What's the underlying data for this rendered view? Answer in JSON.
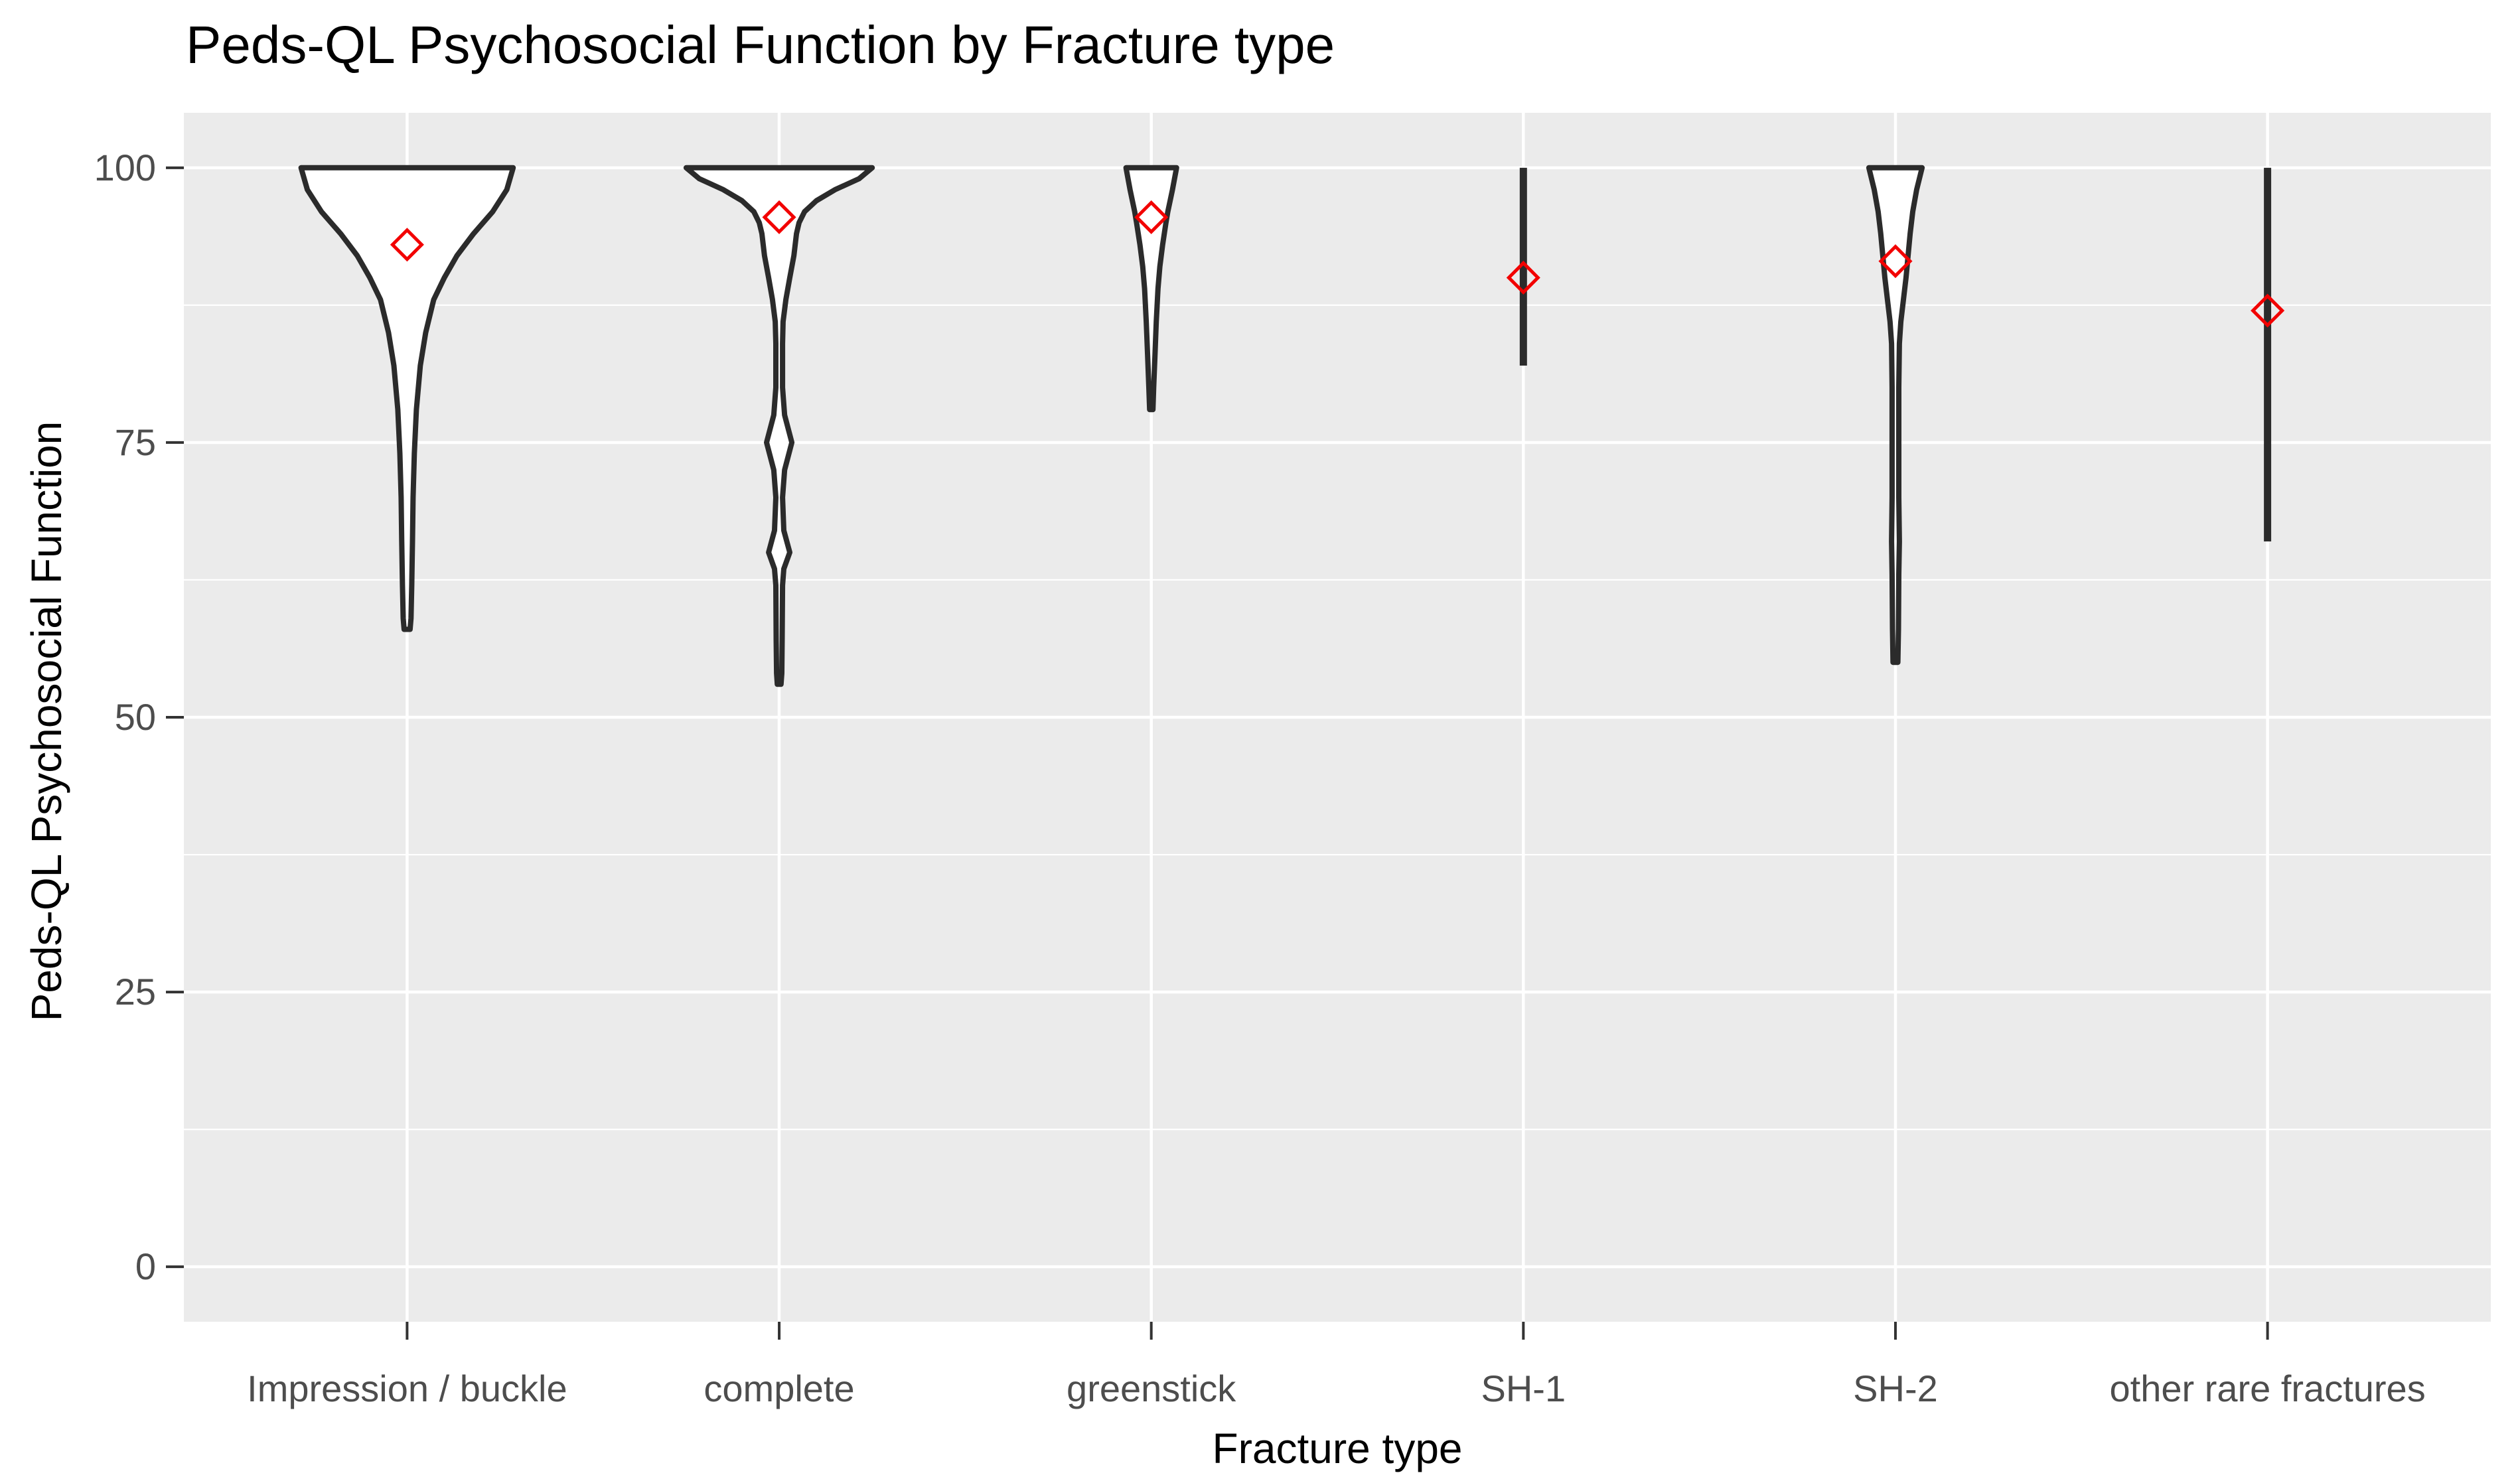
{
  "chart_data": {
    "type": "violin",
    "title": "Peds-QL Psychosocial Function by Fracture type",
    "xlabel": "Fracture type",
    "ylabel": "Peds-QL Psychosocial Function",
    "categories": [
      "Impression / buckle",
      "complete",
      "greenstick",
      "SH-1",
      "SH-2",
      "other rare fractures"
    ],
    "y_ticks": [
      0,
      25,
      50,
      75,
      100
    ],
    "y_minor_ticks": [
      12.5,
      37.5,
      62.5,
      87.5
    ],
    "ylim": [
      -5,
      105
    ],
    "grid": "on",
    "legend": "none",
    "colors": {
      "panel_bg": "#EBEBEB",
      "grid": "#FFFFFF",
      "violin_outline": "#2b2b2b",
      "violin_fill": "#FFFFFF",
      "mean_marker": "#F20000",
      "tick_text": "#4d4d4d",
      "axis_tick": "#333333"
    },
    "mean_marker_shape": "open-diamond",
    "series": [
      {
        "label": "Impression / buckle",
        "kind": "violin",
        "min": 58,
        "max": 100,
        "mean": 93,
        "profile": [
          [
            100,
            0.57
          ],
          [
            98,
            0.536
          ],
          [
            96,
            0.46
          ],
          [
            94,
            0.357
          ],
          [
            92,
            0.268
          ],
          [
            90,
            0.2
          ],
          [
            88,
            0.143
          ],
          [
            85,
            0.1
          ],
          [
            82,
            0.071
          ],
          [
            78,
            0.05
          ],
          [
            74,
            0.039
          ],
          [
            70,
            0.032
          ],
          [
            66,
            0.029
          ],
          [
            62,
            0.025
          ],
          [
            59,
            0.021
          ],
          [
            58,
            0.016
          ]
        ]
      },
      {
        "label": "complete",
        "kind": "violin",
        "min": 53,
        "max": 100,
        "mean": 95.5,
        "profile": [
          [
            100,
            0.5
          ],
          [
            99,
            0.429
          ],
          [
            98,
            0.3
          ],
          [
            97,
            0.2
          ],
          [
            96,
            0.136
          ],
          [
            95,
            0.107
          ],
          [
            94,
            0.093
          ],
          [
            92,
            0.079
          ],
          [
            90,
            0.057
          ],
          [
            88,
            0.036
          ],
          [
            86,
            0.021
          ],
          [
            84,
            0.018
          ],
          [
            80,
            0.018
          ],
          [
            77.5,
            0.029
          ],
          [
            75,
            0.068
          ],
          [
            72.5,
            0.029
          ],
          [
            70,
            0.018
          ],
          [
            67,
            0.025
          ],
          [
            65,
            0.057
          ],
          [
            63.5,
            0.025
          ],
          [
            62,
            0.018
          ],
          [
            57,
            0.016
          ],
          [
            54,
            0.014
          ],
          [
            53,
            0.01
          ]
        ]
      },
      {
        "label": "greenstick",
        "kind": "violin",
        "min": 78,
        "max": 100,
        "mean": 95.5,
        "profile": [
          [
            100,
            0.136
          ],
          [
            98,
            0.114
          ],
          [
            96,
            0.089
          ],
          [
            95,
            0.079
          ],
          [
            93,
            0.061
          ],
          [
            91,
            0.046
          ],
          [
            89,
            0.036
          ],
          [
            86,
            0.027
          ],
          [
            83,
            0.02
          ],
          [
            80,
            0.013
          ],
          [
            78,
            0.009
          ]
        ]
      },
      {
        "label": "SH-1",
        "kind": "line",
        "min": 82,
        "max": 100,
        "mean": 90,
        "profile": [
          [
            100,
            0.016
          ],
          [
            82,
            0.016
          ]
        ]
      },
      {
        "label": "SH-2",
        "kind": "violin",
        "min": 55,
        "max": 100,
        "mean": 91.5,
        "profile": [
          [
            100,
            0.143
          ],
          [
            98,
            0.114
          ],
          [
            96,
            0.093
          ],
          [
            94,
            0.079
          ],
          [
            92,
            0.068
          ],
          [
            90,
            0.057
          ],
          [
            88,
            0.043
          ],
          [
            86,
            0.029
          ],
          [
            84,
            0.021
          ],
          [
            80,
            0.018
          ],
          [
            75,
            0.018
          ],
          [
            70,
            0.018
          ],
          [
            66,
            0.021
          ],
          [
            63,
            0.018
          ],
          [
            58,
            0.016
          ],
          [
            55,
            0.013
          ]
        ]
      },
      {
        "label": "other rare fractures",
        "kind": "line",
        "min": 66,
        "max": 100,
        "mean": 87,
        "profile": [
          [
            100,
            0.016
          ],
          [
            66,
            0.016
          ]
        ]
      }
    ]
  }
}
